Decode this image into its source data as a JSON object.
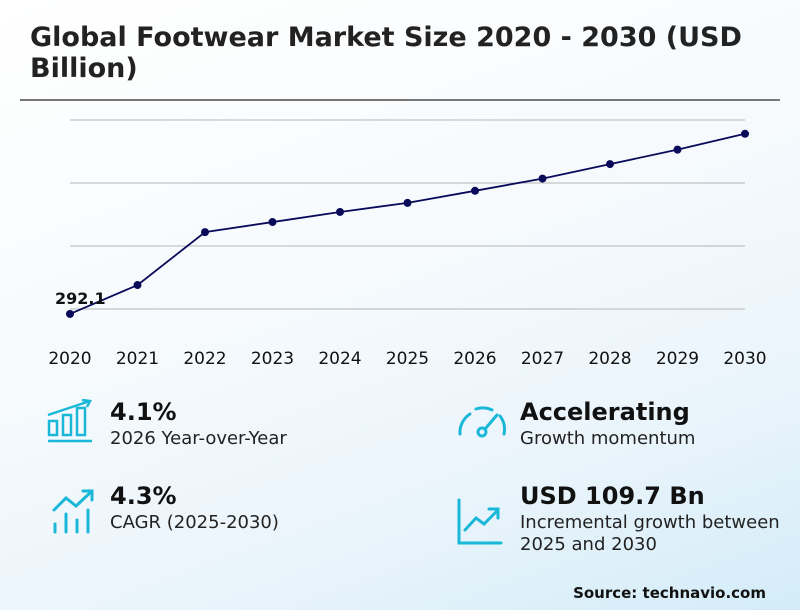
{
  "title": "Global Footwear Market Size 2020 - 2030 (USD Billion)",
  "chart_data": {
    "type": "line",
    "title": "Global Footwear Market Size 2020 - 2030 (USD Billion)",
    "categories": [
      "2020",
      "2021",
      "2022",
      "2023",
      "2024",
      "2025",
      "2026",
      "2027",
      "2028",
      "2029",
      "2030"
    ],
    "values": [
      292.1,
      338,
      422,
      438,
      454,
      468.4,
      487.6,
      507,
      530,
      553,
      578.1
    ],
    "data_labels": [
      {
        "index": 0,
        "text": "292.1"
      }
    ],
    "ylim": [
      290,
      600
    ],
    "gridlines": [
      300,
      400,
      500,
      600
    ],
    "grid": true,
    "line_color": "#0a0a5a"
  },
  "metrics": [
    {
      "value": "4.1%",
      "label": "2026 Year-over-Year",
      "icon": "bar-chart-growth-icon"
    },
    {
      "value": "Accelerating",
      "label": "Growth momentum",
      "icon": "speedometer-icon"
    },
    {
      "value": "4.3%",
      "label": "CAGR (2025-2030)",
      "icon": "trend-up-bars-icon"
    },
    {
      "value": "USD 109.7 Bn",
      "label": "Incremental growth between 2025 and 2030",
      "icon": "line-chart-up-icon"
    }
  ],
  "accent_color": "#1ab8d8",
  "source": "Source: technavio.com"
}
